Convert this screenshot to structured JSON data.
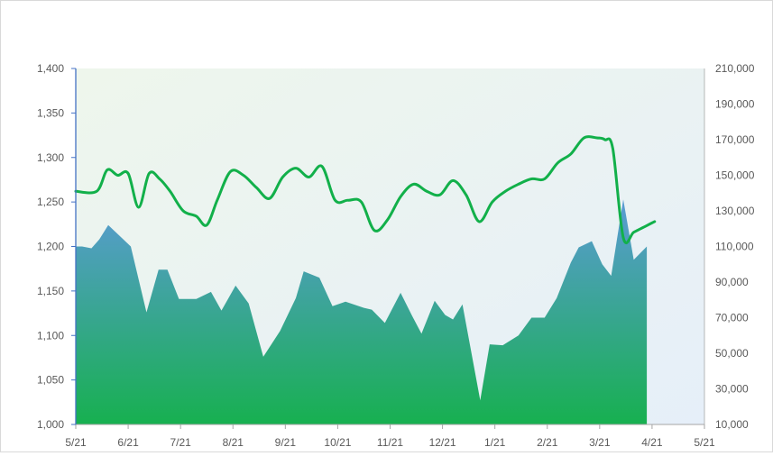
{
  "chart_data": {
    "type": "area",
    "title": "",
    "xlabel": "",
    "ylabel": "",
    "y2label": "",
    "x_ticks": [
      "5/21",
      "6/21",
      "7/21",
      "8/21",
      "9/21",
      "10/21",
      "11/21",
      "12/21",
      "1/21",
      "2/21",
      "3/21",
      "4/21",
      "5/21"
    ],
    "ylim": [
      1000,
      1400
    ],
    "y_ticks": [
      "1,000",
      "1,050",
      "1,100",
      "1,150",
      "1,200",
      "1,250",
      "1,300",
      "1,350",
      "1,400"
    ],
    "y_tick_values": [
      1000,
      1050,
      1100,
      1150,
      1200,
      1250,
      1300,
      1350,
      1400
    ],
    "y2lim": [
      10000,
      210000
    ],
    "y2_ticks": [
      "10,000",
      "30,000",
      "50,000",
      "70,000",
      "90,000",
      "110,000",
      "130,000",
      "150,000",
      "170,000",
      "190,000",
      "210,000"
    ],
    "y2_tick_values": [
      10000,
      30000,
      50000,
      70000,
      90000,
      110000,
      130000,
      150000,
      170000,
      190000,
      210000
    ],
    "grid": false,
    "legend": "none",
    "series": [
      {
        "kind": "area",
        "axis": "left",
        "colors": [
          "#5b9bd5",
          "#17b050"
        ],
        "x": [
          0,
          0.12,
          0.3,
          0.45,
          0.62,
          0.82,
          1.05,
          1.35,
          1.58,
          1.75,
          1.97,
          2.3,
          2.58,
          2.78,
          3.05,
          3.3,
          3.58,
          3.9,
          4.2,
          4.35,
          4.65,
          4.9,
          5.15,
          5.5,
          5.65,
          5.9,
          6.2,
          6.42,
          6.6,
          6.85,
          7.05,
          7.2,
          7.38,
          7.72,
          7.9,
          8.15,
          8.45,
          8.7,
          8.95,
          9.18,
          9.45,
          9.6,
          9.85,
          10.05,
          10.22,
          10.45,
          10.65,
          10.9
        ],
        "values": [
          1200,
          1200,
          1198,
          1208,
          1224,
          1213,
          1200,
          1126,
          1174,
          1174,
          1141,
          1141,
          1149,
          1128,
          1156,
          1136,
          1076,
          1105,
          1142,
          1172,
          1165,
          1133,
          1138,
          1131,
          1129,
          1114,
          1148,
          1122,
          1102,
          1139,
          1123,
          1118,
          1135,
          1027,
          1090,
          1089,
          1100,
          1120,
          1120,
          1142,
          1182,
          1199,
          1206,
          1180,
          1167,
          1253,
          1185,
          1200
        ]
      },
      {
        "kind": "line",
        "axis": "right",
        "color": "#12b04a",
        "x": [
          0,
          0.4,
          0.6,
          0.8,
          1.0,
          1.2,
          1.4,
          1.6,
          1.8,
          2.05,
          2.3,
          2.5,
          2.7,
          2.95,
          3.2,
          3.45,
          3.7,
          3.95,
          4.2,
          4.45,
          4.7,
          4.95,
          5.2,
          5.45,
          5.7,
          5.95,
          6.2,
          6.45,
          6.7,
          6.95,
          7.2,
          7.45,
          7.7,
          7.95,
          8.2,
          8.45,
          8.7,
          8.95,
          9.2,
          9.45,
          9.7,
          9.95,
          10.1,
          10.25,
          10.45,
          10.65,
          10.85,
          11.05
        ],
        "values": [
          141000,
          141000,
          153000,
          150000,
          151000,
          132000,
          151000,
          148000,
          141000,
          130000,
          127000,
          122000,
          136000,
          152000,
          150000,
          143000,
          137000,
          149000,
          154000,
          149000,
          155000,
          136000,
          136000,
          135000,
          119000,
          125000,
          138000,
          145000,
          141000,
          139000,
          147000,
          139000,
          124000,
          135000,
          141000,
          145000,
          148000,
          148000,
          157000,
          162000,
          171000,
          171000,
          170000,
          165000,
          115000,
          118000,
          121000,
          124000
        ]
      }
    ]
  }
}
